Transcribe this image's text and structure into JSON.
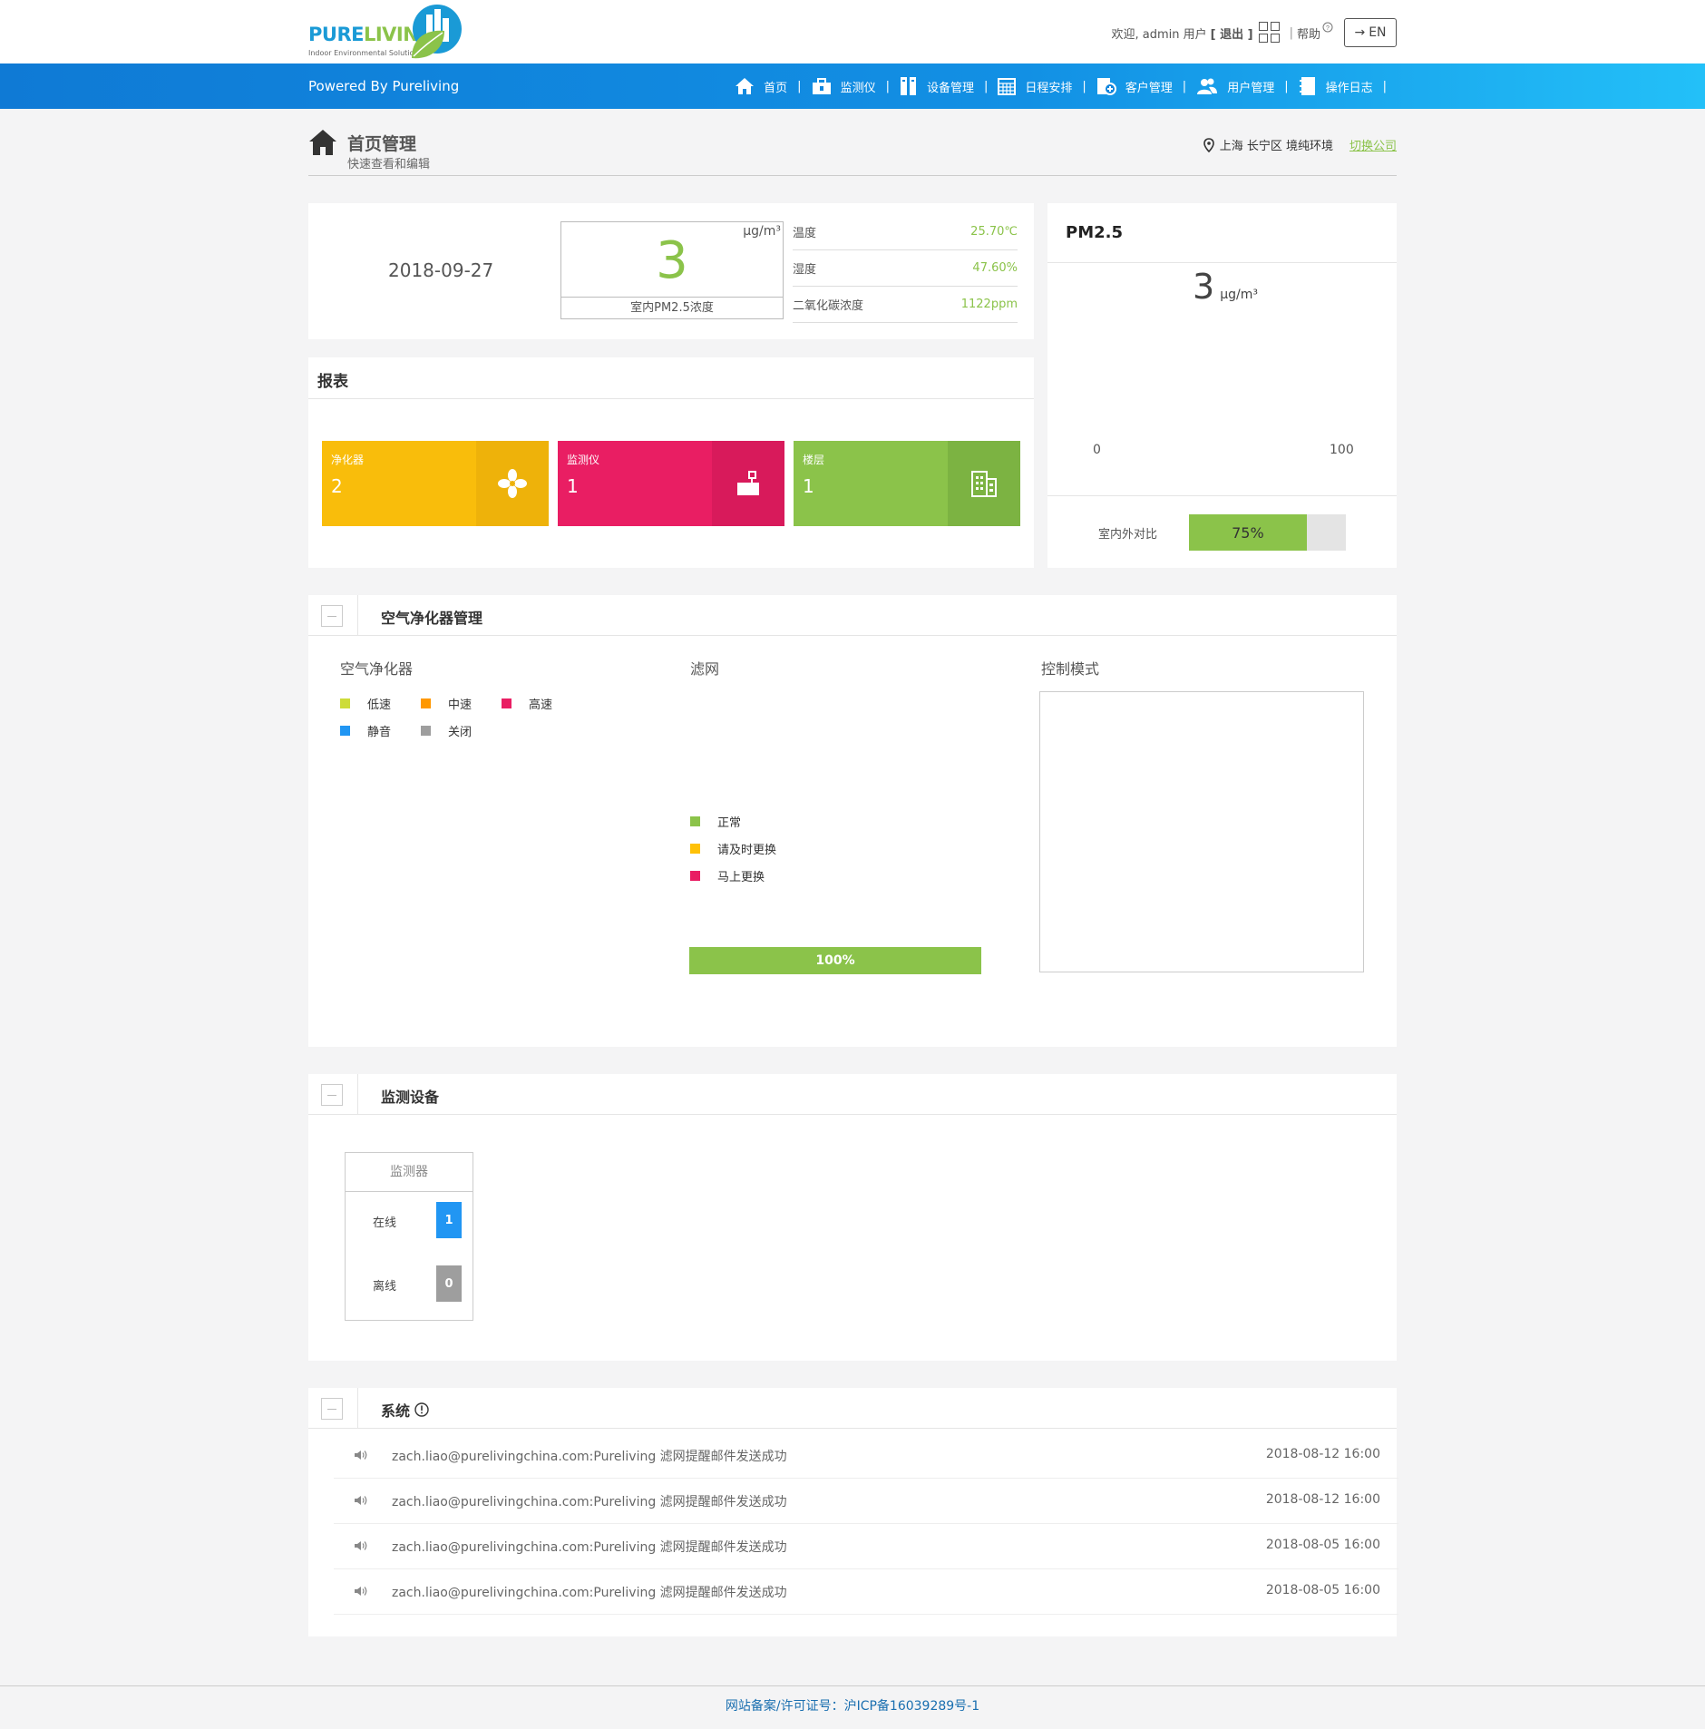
{
  "header": {
    "logo_pure": "PURE",
    "logo_living": "LIVING",
    "logo_sub": "Indoor Environmental Solutions",
    "welcome": "欢迎, admin 用户",
    "logout": "[ 退出 ]",
    "help": "帮助",
    "lang_button": "EN"
  },
  "navbar": {
    "powered": "Powered By Pureliving",
    "items": [
      {
        "label": "首页",
        "icon": "home-icon"
      },
      {
        "label": "监测仪",
        "icon": "monitor-icon"
      },
      {
        "label": "设备管理",
        "icon": "device-icon"
      },
      {
        "label": "日程安排",
        "icon": "calendar-icon"
      },
      {
        "label": "客户管理",
        "icon": "customer-icon"
      },
      {
        "label": "用户管理",
        "icon": "users-icon"
      },
      {
        "label": "操作日志",
        "icon": "log-icon"
      }
    ]
  },
  "page": {
    "title": "首页管理",
    "subtitle": "快速查看和编辑",
    "location": "上海 长宁区 境纯环境",
    "switch_company": "切换公司"
  },
  "summary": {
    "date": "2018-09-27",
    "pm_value": "3",
    "pm_unit": "μg/m³",
    "pm_label": "室内PM2.5浓度",
    "metrics": [
      {
        "label": "温度",
        "value": "25.70℃"
      },
      {
        "label": "湿度",
        "value": "47.60%"
      },
      {
        "label": "二氧化碳浓度",
        "value": "1122ppm"
      }
    ]
  },
  "report": {
    "title": "报表",
    "tiles": [
      {
        "label": "净化器",
        "value": "2",
        "color": "#f9bd0b",
        "icon_bg": "#eeb20a",
        "icon": "fan-icon"
      },
      {
        "label": "监测仪",
        "value": "1",
        "color": "#e91e63",
        "icon_bg": "#d81a5b",
        "icon": "monitor-device-icon"
      },
      {
        "label": "楼层",
        "value": "1",
        "color": "#8bc34a",
        "icon_bg": "#7cb342",
        "icon": "building-icon"
      }
    ]
  },
  "pm25_panel": {
    "title": "PM2.5",
    "value": "3",
    "unit": "μg/m³",
    "gauge_min": "0",
    "gauge_max": "100",
    "compare_label": "室内外对比",
    "compare_value": "75%",
    "compare_fraction": 0.75
  },
  "purifier_section": {
    "title": "空气净化器管理",
    "col1_title": "空气净化器",
    "speed_legend": [
      {
        "label": "低速",
        "color": "#cddc39"
      },
      {
        "label": "中速",
        "color": "#ff9800"
      },
      {
        "label": "高速",
        "color": "#e91e63"
      },
      {
        "label": "静音",
        "color": "#2196f3"
      },
      {
        "label": "关闭",
        "color": "#9e9e9e"
      }
    ],
    "col2_title": "滤网",
    "filter_legend": [
      {
        "label": "正常",
        "color": "#8bc34a"
      },
      {
        "label": "请及时更换",
        "color": "#ffc107"
      },
      {
        "label": "马上更换",
        "color": "#e91e63"
      }
    ],
    "filter_progress": "100%",
    "col3_title": "控制模式"
  },
  "monitor_section": {
    "title": "监测设备",
    "card_title": "监测器",
    "online_label": "在线",
    "online_count": "1",
    "offline_label": "离线",
    "offline_count": "0"
  },
  "system_section": {
    "title": "系统",
    "logs": [
      {
        "message": "zach.liao@purelivingchina.com:Pureliving 滤网提醒邮件发送成功",
        "time": "2018-08-12 16:00"
      },
      {
        "message": "zach.liao@purelivingchina.com:Pureliving 滤网提醒邮件发送成功",
        "time": "2018-08-12 16:00"
      },
      {
        "message": "zach.liao@purelivingchina.com:Pureliving 滤网提醒邮件发送成功",
        "time": "2018-08-05 16:00"
      },
      {
        "message": "zach.liao@purelivingchina.com:Pureliving 滤网提醒邮件发送成功",
        "time": "2018-08-05 16:00"
      }
    ]
  },
  "footer": {
    "text": "网站备案/许可证号：沪ICP备16039289号-1"
  }
}
